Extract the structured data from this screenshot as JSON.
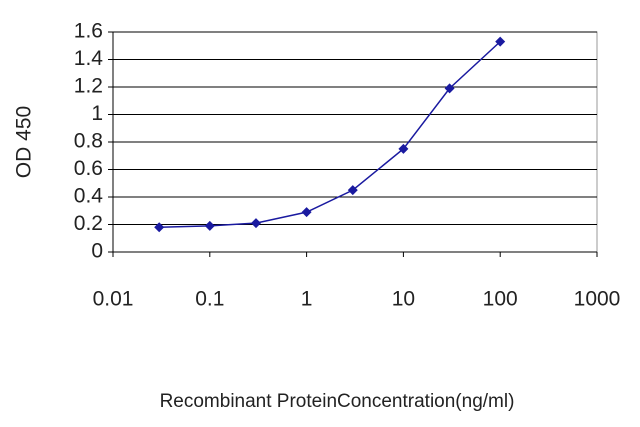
{
  "chart_data": {
    "type": "line",
    "x_label": "Recombinant ProteinConcentration(ng/ml)",
    "y_label": "OD 450",
    "xscale": "log",
    "grid": true,
    "x": [
      0.03,
      0.1,
      0.3,
      1,
      3,
      10,
      30,
      100
    ],
    "series": [
      {
        "color": "#1a1aa0",
        "values": [
          0.18,
          0.19,
          0.21,
          0.29,
          0.45,
          0.75,
          1.19,
          1.53
        ]
      }
    ],
    "xlim": [
      0.01,
      1000
    ],
    "xticks": [
      0.01,
      0.1,
      1,
      10,
      100,
      1000
    ],
    "ylim": [
      0,
      1.6
    ],
    "yticks": [
      0,
      0.2,
      0.4,
      0.6,
      0.8,
      1,
      1.2,
      1.4,
      1.6
    ]
  }
}
